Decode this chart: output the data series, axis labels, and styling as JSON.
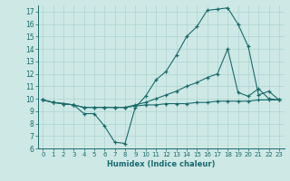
{
  "xlabel": "Humidex (Indice chaleur)",
  "bg_color": "#cde8e5",
  "grid_color": "#aed4d0",
  "line_color": "#1a6b6b",
  "xlim": [
    -0.5,
    23.5
  ],
  "ylim": [
    6,
    17.5
  ],
  "yticks": [
    6,
    7,
    8,
    9,
    10,
    11,
    12,
    13,
    14,
    15,
    16,
    17
  ],
  "xticks": [
    0,
    1,
    2,
    3,
    4,
    5,
    6,
    7,
    8,
    9,
    10,
    11,
    12,
    13,
    14,
    15,
    16,
    17,
    18,
    19,
    20,
    21,
    22,
    23
  ],
  "series": [
    {
      "x": [
        0,
        1,
        2,
        3,
        4,
        5,
        6,
        7,
        8,
        9,
        10,
        11,
        12,
        13,
        14,
        15,
        16,
        17,
        18,
        19,
        20,
        21,
        22,
        23
      ],
      "y": [
        9.9,
        9.7,
        9.6,
        9.5,
        9.3,
        9.3,
        9.3,
        9.3,
        9.3,
        9.4,
        9.5,
        9.5,
        9.6,
        9.6,
        9.6,
        9.7,
        9.7,
        9.8,
        9.8,
        9.8,
        9.8,
        9.9,
        9.9,
        9.9
      ]
    },
    {
      "x": [
        0,
        1,
        2,
        3,
        4,
        5,
        6,
        7,
        8,
        9,
        10,
        11,
        12,
        13,
        14,
        15,
        16,
        17,
        18,
        19,
        20,
        21,
        22,
        23
      ],
      "y": [
        9.9,
        9.7,
        9.6,
        9.5,
        9.3,
        9.3,
        9.3,
        9.3,
        9.3,
        9.5,
        9.7,
        10.0,
        10.3,
        10.6,
        11.0,
        11.3,
        11.7,
        12.0,
        14.0,
        10.5,
        10.2,
        10.8,
        10.0,
        9.9
      ]
    },
    {
      "x": [
        0,
        1,
        2,
        3,
        4,
        5,
        6,
        7,
        8,
        9,
        10,
        11,
        12,
        13,
        14,
        15,
        16,
        17,
        18,
        19,
        20,
        21,
        22,
        23
      ],
      "y": [
        9.9,
        9.7,
        9.6,
        9.5,
        8.8,
        8.8,
        7.8,
        6.5,
        6.4,
        9.3,
        10.2,
        11.5,
        12.2,
        13.5,
        15.0,
        15.8,
        17.1,
        17.2,
        17.3,
        16.0,
        14.2,
        10.3,
        10.6,
        9.9
      ]
    }
  ]
}
